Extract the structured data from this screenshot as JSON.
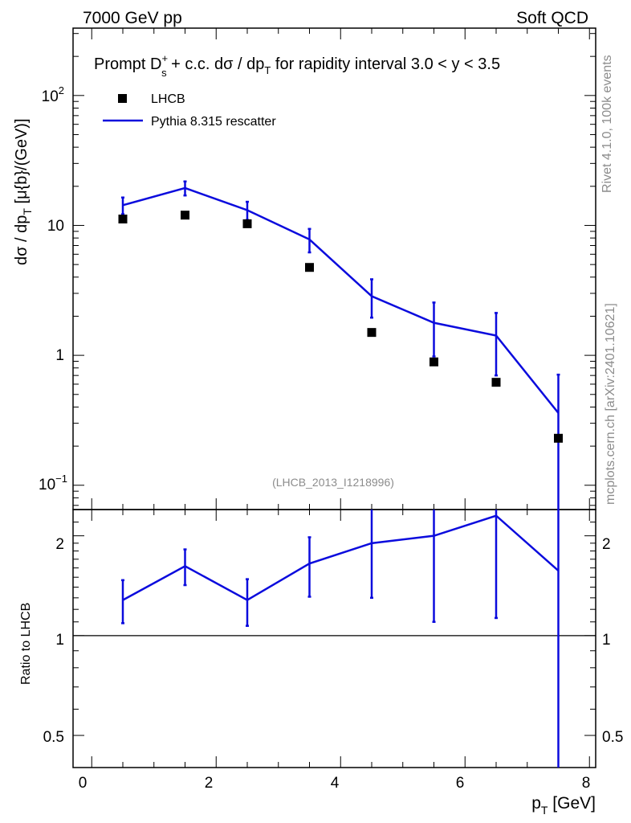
{
  "header": {
    "left": "7000 GeV pp",
    "right": "Soft QCD"
  },
  "plot_title": {
    "prefix": "Prompt D",
    "sup": "+",
    "sub": "s",
    "middle": " + c.c.  dσ / dp",
    "sub2": "T",
    "suffix": " for rapidity interval 3.0 < y < 3.5"
  },
  "side_labels": {
    "rivet": "Rivet 4.1.0,  100k events",
    "mcplots": "mcplots.cern.ch [arXiv:2401.10621]"
  },
  "analysis_id": "(LHCB_2013_I1218996)",
  "legend": {
    "data_label": "LHCB",
    "mc_label": "Pythia 8.315 rescatter"
  },
  "axes": {
    "ylabel_main": "dσ / dp",
    "ylabel_main_sub": "T",
    "ylabel_main_unit": " [μ{b}/(GeV)]",
    "ylabel_ratio": "Ratio to LHCB",
    "xlabel": "p",
    "xlabel_sub": "T",
    "xlabel_unit": " [GeV]",
    "main_ticks": {
      "t1": "10",
      "t1_exp": "2",
      "t2": "10",
      "t3": "1",
      "t4": "10",
      "t4_exp": "−1"
    },
    "ratio_ticks": {
      "r1": "2",
      "r2": "1",
      "r3": "0.5"
    },
    "x_ticks": {
      "x0": "0",
      "x2": "2",
      "x4": "4",
      "x6": "6",
      "x8": "8"
    }
  },
  "colors": {
    "mc": "#0b0bdd",
    "data": "#000000"
  },
  "chart_data": {
    "type": "line",
    "title": "Prompt Ds+ + c.c. dσ/dpT for rapidity interval 3.0 < y < 3.5",
    "xlabel": "pT [GeV]",
    "ylabel": "dσ/dpT [μb/GeV]",
    "xlim": [
      -0.3,
      8.1
    ],
    "ylim": [
      0.065,
      330
    ],
    "yscale": "log",
    "x": [
      0.5,
      1.5,
      2.5,
      3.5,
      4.5,
      5.5,
      6.5,
      7.5
    ],
    "series": [
      {
        "name": "LHCB",
        "kind": "data",
        "values": [
          11.2,
          12.0,
          10.3,
          4.75,
          1.5,
          0.89,
          0.62,
          0.23
        ]
      },
      {
        "name": "Pythia 8.315 rescatter",
        "kind": "mc",
        "values": [
          14.3,
          19.4,
          13.1,
          7.8,
          2.85,
          1.78,
          1.42,
          0.36
        ],
        "err_low": [
          12.2,
          17.0,
          11.0,
          6.2,
          1.95,
          0.98,
          0.7,
          0.065
        ],
        "err_high": [
          16.4,
          21.8,
          15.2,
          9.4,
          3.85,
          2.55,
          2.12,
          0.71
        ]
      }
    ],
    "ratio": {
      "ylabel": "Ratio to LHCB",
      "ylim": [
        0.4,
        2.4
      ],
      "yscale": "log",
      "values": [
        1.28,
        1.62,
        1.28,
        1.65,
        1.9,
        2.0,
        2.3,
        1.57
      ],
      "err_low": [
        1.09,
        1.42,
        1.07,
        1.31,
        1.3,
        1.1,
        1.13,
        0.3
      ],
      "err_high": [
        1.47,
        1.82,
        1.48,
        1.98,
        2.6,
        2.95,
        3.4,
        3.1
      ]
    }
  }
}
